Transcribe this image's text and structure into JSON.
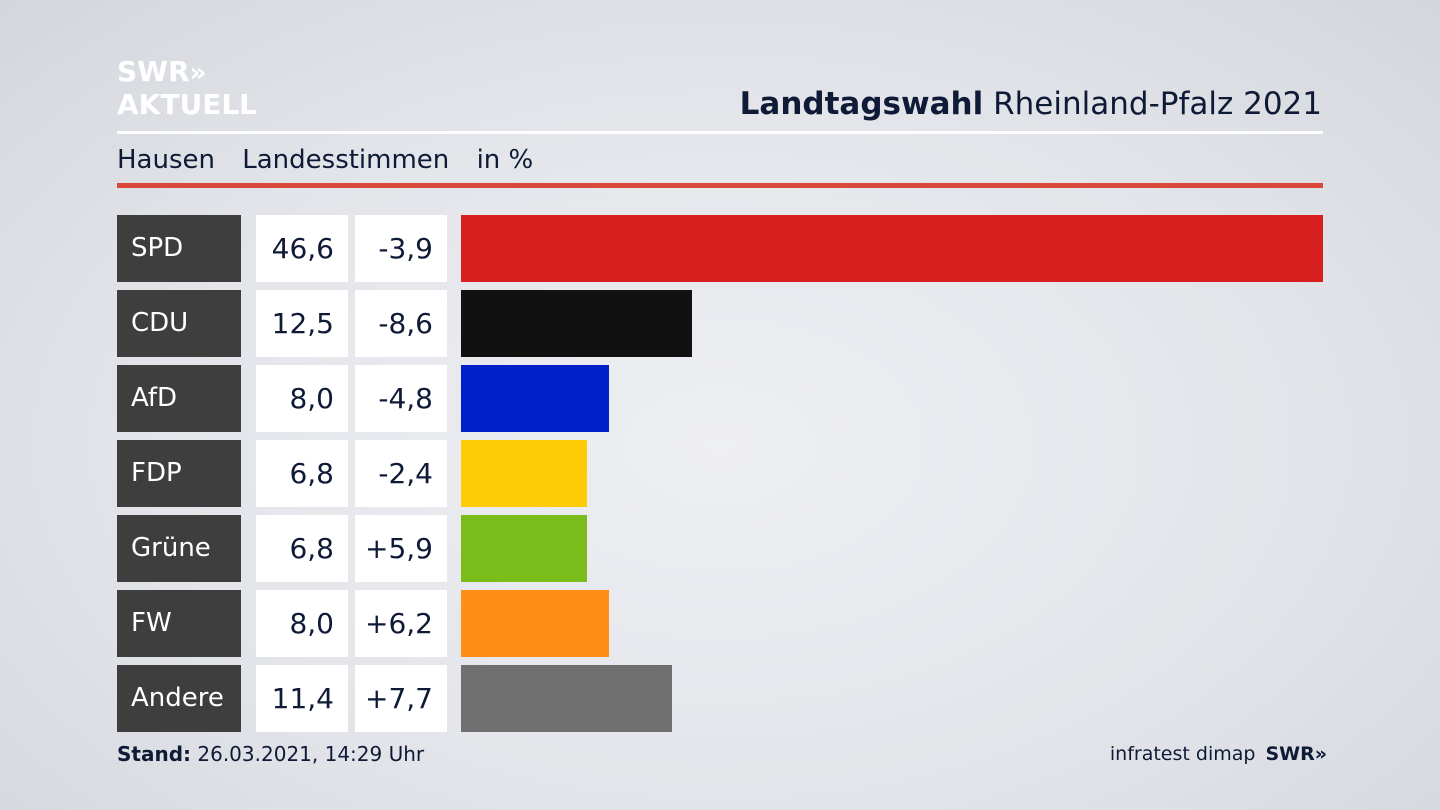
{
  "logo": {
    "line1": "SWR",
    "line1_mark": "»",
    "line2": "AKTUELL"
  },
  "header": {
    "title_bold": "Landtagswahl",
    "title_rest": "Rheinland-Pfalz 2021"
  },
  "subheader": {
    "place": "Hausen",
    "measure": "Landesstimmen",
    "unit": "in %"
  },
  "chart_data": {
    "type": "bar",
    "orientation": "horizontal",
    "title": "Landtagswahl Rheinland-Pfalz 2021",
    "categories": [
      "SPD",
      "CDU",
      "AfD",
      "FDP",
      "Grüne",
      "FW",
      "Andere"
    ],
    "series": [
      {
        "name": "Landesstimmen in %",
        "values": [
          46.6,
          12.5,
          8.0,
          6.8,
          6.8,
          8.0,
          11.4
        ]
      }
    ],
    "value_labels": [
      "46,6",
      "12,5",
      "8,0",
      "6,8",
      "6,8",
      "8,0",
      "11,4"
    ],
    "diff_labels": [
      "-3,9",
      "-8,6",
      "-4,8",
      "-2,4",
      "+5,9",
      "+6,2",
      "+7,7"
    ],
    "diffs": [
      -3.9,
      -8.6,
      -4.8,
      -2.4,
      5.9,
      6.2,
      7.7
    ],
    "colors": [
      "#d71f20",
      "#111111",
      "#0021c9",
      "#fdcc06",
      "#7abd1b",
      "#fd8e18",
      "#707070"
    ],
    "xlim": [
      0,
      46.6
    ],
    "grid": false,
    "legend": "none"
  },
  "footer": {
    "stand_label": "Stand:",
    "stand_value": "26.03.2021, 14:29 Uhr",
    "source": "infratest dimap",
    "brand": "SWR",
    "brand_mark": "»"
  }
}
